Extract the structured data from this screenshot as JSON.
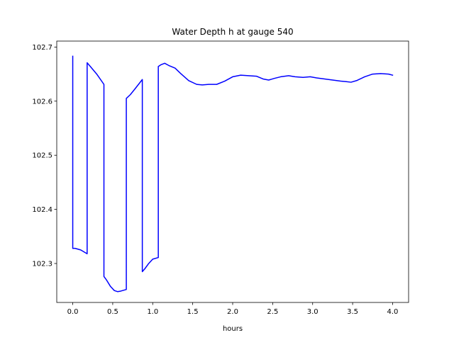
{
  "chart_data": {
    "type": "line",
    "title": "Water Depth h at gauge 540",
    "xlabel": "hours",
    "ylabel": "",
    "xlim": [
      -0.2,
      4.2
    ],
    "ylim": [
      102.228,
      102.711
    ],
    "xticks": [
      0.0,
      0.5,
      1.0,
      1.5,
      2.0,
      2.5,
      3.0,
      3.5,
      4.0
    ],
    "xtick_labels": [
      "0.0",
      "0.5",
      "1.0",
      "1.5",
      "2.0",
      "2.5",
      "3.0",
      "3.5",
      "4.0"
    ],
    "yticks": [
      102.3,
      102.4,
      102.5,
      102.6,
      102.7
    ],
    "ytick_labels": [
      "102.3",
      "102.4",
      "102.5",
      "102.6",
      "102.7"
    ],
    "grid": false,
    "series": [
      {
        "name": "",
        "color": "#0000ff",
        "x": [
          0.0,
          0.0,
          0.03,
          0.1,
          0.18,
          0.18,
          0.22,
          0.3,
          0.39,
          0.39,
          0.42,
          0.47,
          0.52,
          0.56,
          0.6,
          0.67,
          0.67,
          0.72,
          0.78,
          0.87,
          0.87,
          0.9,
          0.95,
          1.0,
          1.07,
          1.07,
          1.1,
          1.15,
          1.2,
          1.28,
          1.35,
          1.45,
          1.55,
          1.62,
          1.7,
          1.8,
          1.9,
          2.0,
          2.1,
          2.2,
          2.3,
          2.38,
          2.45,
          2.52,
          2.6,
          2.7,
          2.78,
          2.88,
          2.97,
          3.05,
          3.15,
          3.25,
          3.35,
          3.42,
          3.48,
          3.55,
          3.65,
          3.75,
          3.85,
          3.95,
          4.0
        ],
        "y": [
          102.683,
          102.328,
          102.328,
          102.325,
          102.318,
          102.671,
          102.664,
          102.65,
          102.631,
          102.276,
          102.27,
          102.258,
          102.25,
          102.248,
          102.249,
          102.252,
          102.605,
          102.612,
          102.623,
          102.64,
          102.285,
          102.29,
          102.3,
          102.308,
          102.311,
          102.664,
          102.667,
          102.67,
          102.666,
          102.661,
          102.651,
          102.638,
          102.631,
          102.63,
          102.631,
          102.631,
          102.637,
          102.645,
          102.648,
          102.647,
          102.646,
          102.641,
          102.639,
          102.642,
          102.645,
          102.647,
          102.645,
          102.644,
          102.645,
          102.643,
          102.641,
          102.639,
          102.637,
          102.636,
          102.635,
          102.638,
          102.645,
          102.65,
          102.651,
          102.65,
          102.648
        ]
      }
    ]
  }
}
